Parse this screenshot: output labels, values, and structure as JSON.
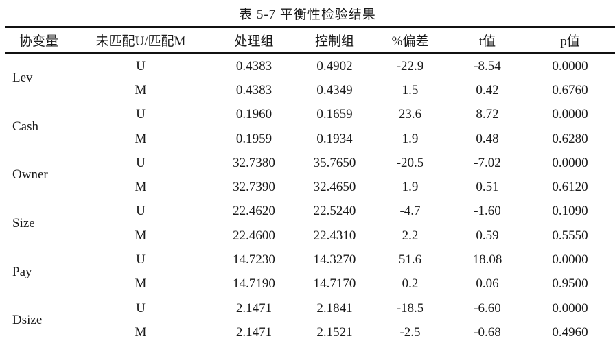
{
  "title": "表 5-7  平衡性检验结果",
  "headers": [
    "协变量",
    "未匹配U/匹配M",
    "处理组",
    "控制组",
    "%偏差",
    "t值",
    "p值"
  ],
  "rows": [
    {
      "variable": "Lev",
      "samples": [
        [
          "U",
          "0.4383",
          "0.4902",
          "-22.9",
          "-8.54",
          "0.0000"
        ],
        [
          "M",
          "0.4383",
          "0.4349",
          "1.5",
          "0.42",
          "0.6760"
        ]
      ]
    },
    {
      "variable": "Cash",
      "samples": [
        [
          "U",
          "0.1960",
          "0.1659",
          "23.6",
          "8.72",
          "0.0000"
        ],
        [
          "M",
          "0.1959",
          "0.1934",
          "1.9",
          "0.48",
          "0.6280"
        ]
      ]
    },
    {
      "variable": "Owner",
      "samples": [
        [
          "U",
          "32.7380",
          "35.7650",
          "-20.5",
          "-7.02",
          "0.0000"
        ],
        [
          "M",
          "32.7390",
          "32.4650",
          "1.9",
          "0.51",
          "0.6120"
        ]
      ]
    },
    {
      "variable": "Size",
      "samples": [
        [
          "U",
          "22.4620",
          "22.5240",
          "-4.7",
          "-1.60",
          "0.1090"
        ],
        [
          "M",
          "22.4600",
          "22.4310",
          "2.2",
          "0.59",
          "0.5550"
        ]
      ]
    },
    {
      "variable": "Pay",
      "samples": [
        [
          "U",
          "14.7230",
          "14.3270",
          "51.6",
          "18.08",
          "0.0000"
        ],
        [
          "M",
          "14.7190",
          "14.7170",
          "0.2",
          "0.06",
          "0.9500"
        ]
      ]
    },
    {
      "variable": "Dsize",
      "samples": [
        [
          "U",
          "2.1471",
          "2.1841",
          "-18.5",
          "-6.60",
          "0.0000"
        ],
        [
          "M",
          "2.1471",
          "2.1521",
          "-2.5",
          "-0.68",
          "0.4960"
        ]
      ]
    }
  ]
}
